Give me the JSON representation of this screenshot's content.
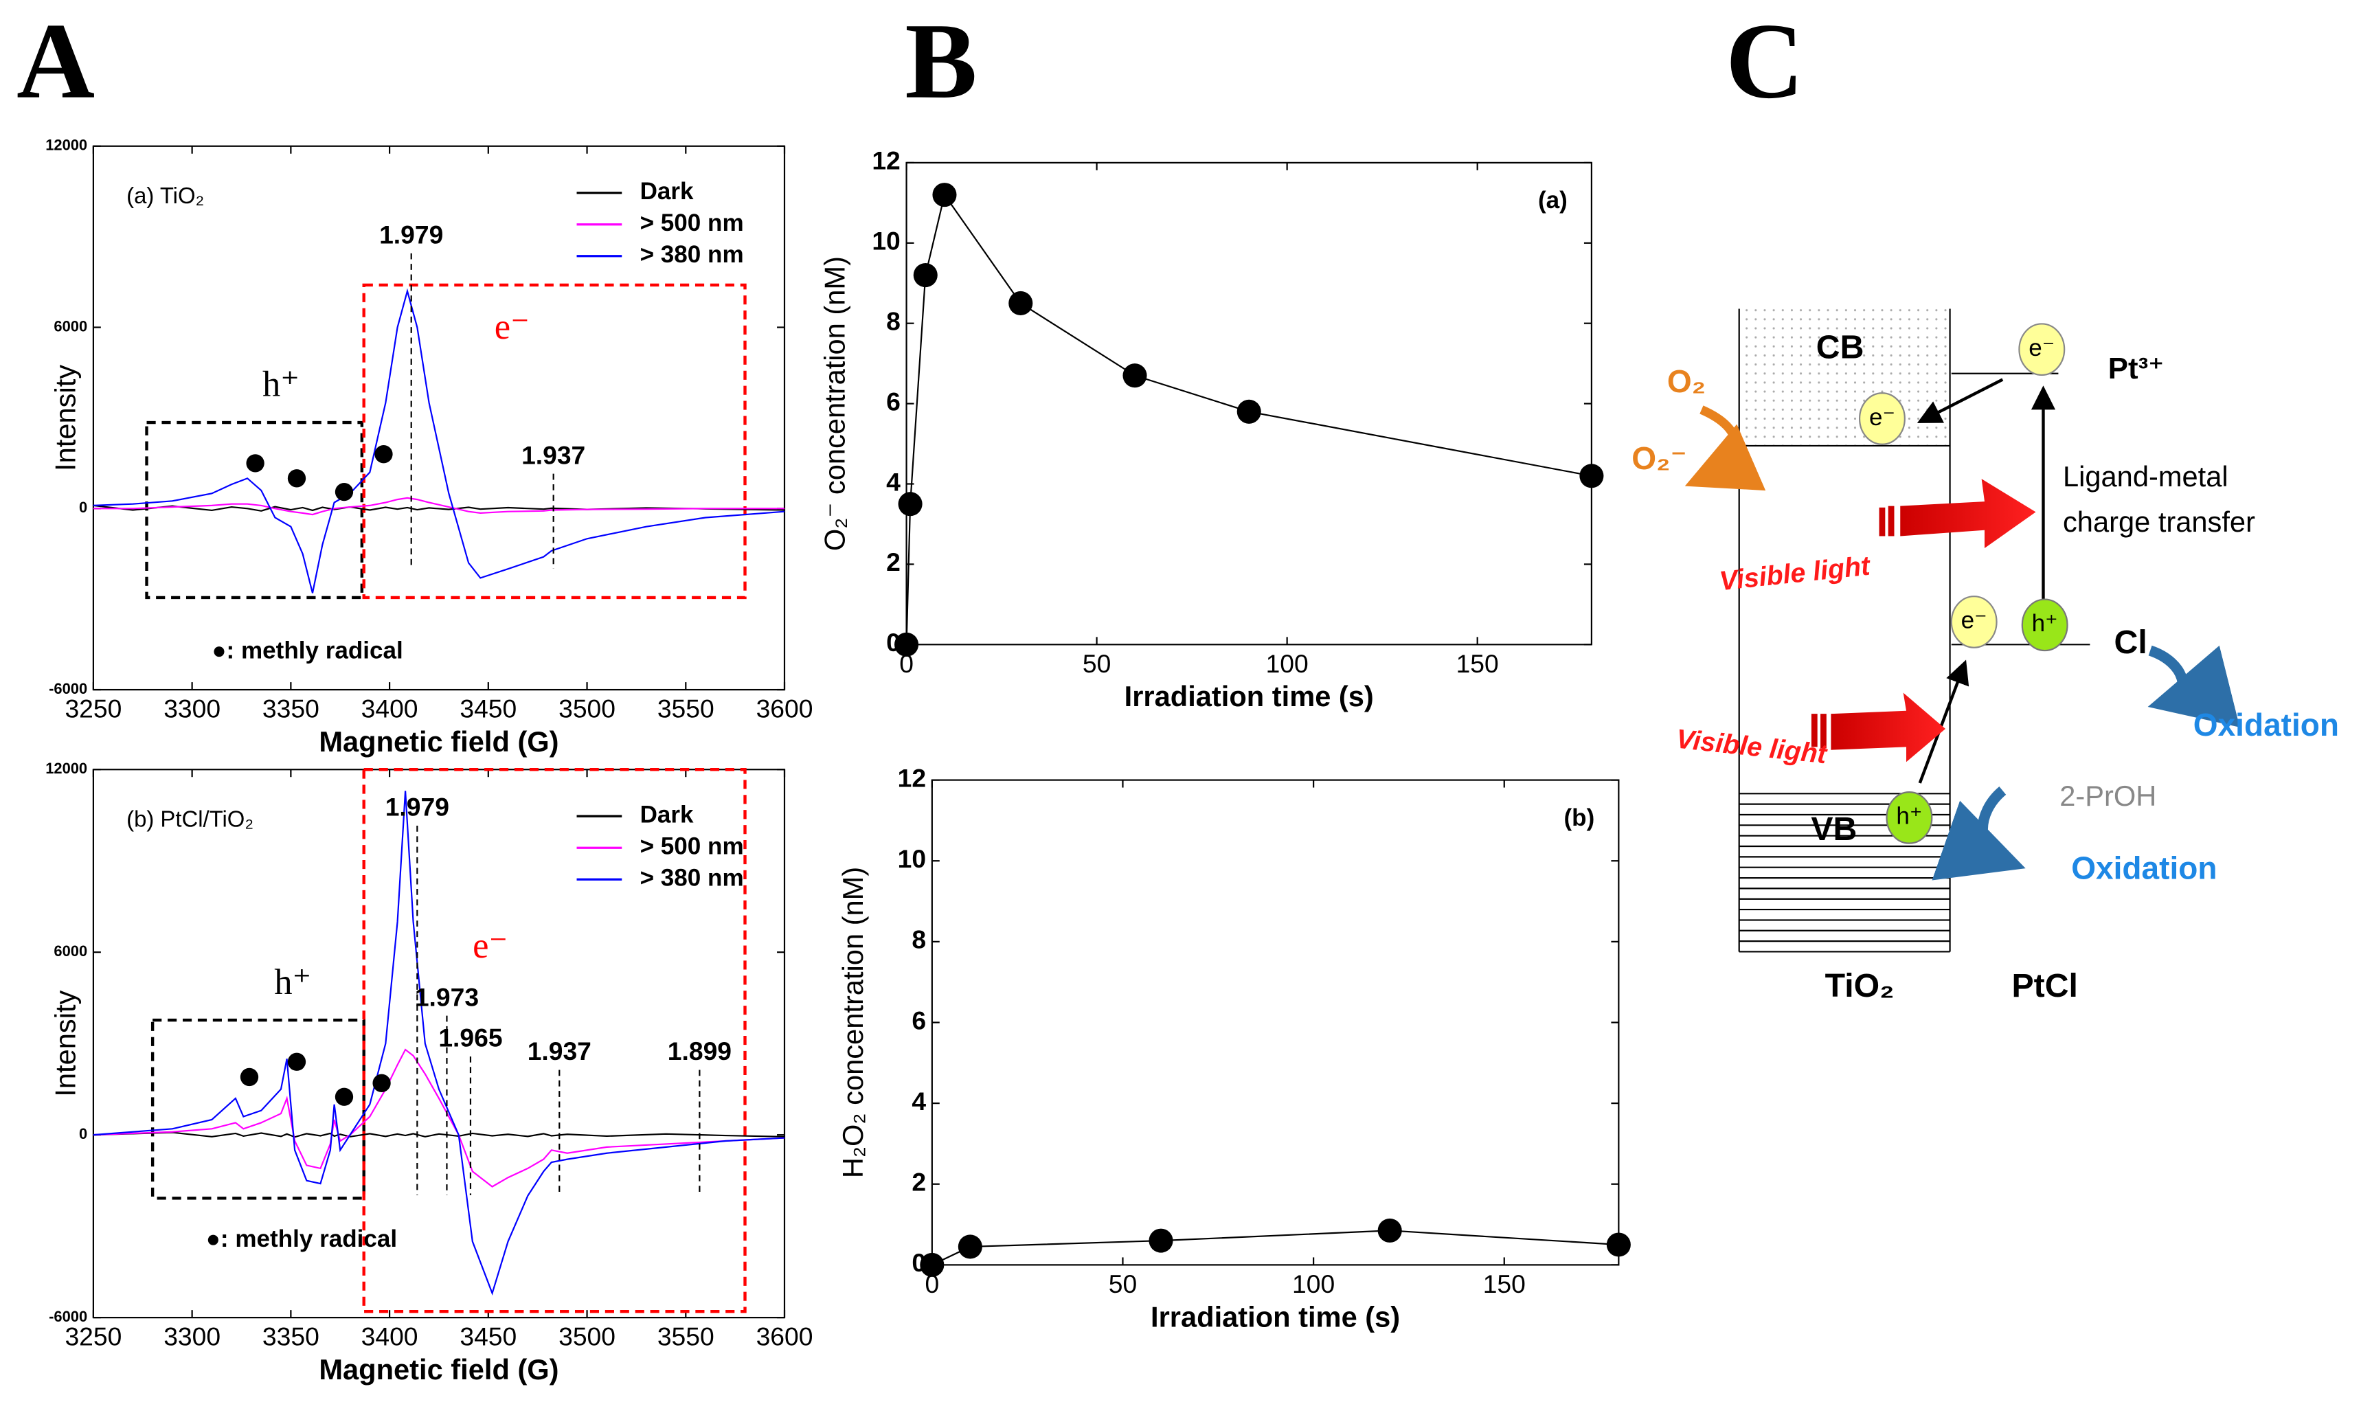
{
  "panels": [
    "A",
    "B",
    "C"
  ],
  "chart_data": [
    {
      "type": "line",
      "title": "(a) TiO₂",
      "xlabel": "Magnetic field (G)",
      "ylabel": "Intensity",
      "xlim": [
        3250,
        3600
      ],
      "xticks": [
        3250,
        3300,
        3350,
        3400,
        3450,
        3500,
        3550,
        3600
      ],
      "ylim": [
        -6000,
        12000
      ],
      "yticks": [
        -6000,
        0,
        6000,
        12000
      ],
      "legend": "upper right",
      "x": [
        3250,
        3270,
        3290,
        3310,
        3320,
        3328,
        3335,
        3342,
        3350,
        3356,
        3361,
        3366,
        3372,
        3380,
        3390,
        3398,
        3404,
        3409,
        3414,
        3420,
        3430,
        3440,
        3446,
        3460,
        3478,
        3482,
        3500,
        3530,
        3560,
        3600
      ],
      "series": [
        {
          "name": "Dark",
          "color": "#000000",
          "values": [
            100,
            -50,
            80,
            -60,
            50,
            0,
            -80,
            60,
            -40,
            30,
            -60,
            40,
            -30,
            50,
            -50,
            40,
            -20,
            30,
            -40,
            20,
            -30,
            40,
            -20,
            30,
            -20,
            10,
            -30,
            20,
            -10,
            -50
          ]
        },
        {
          "name": "> 500 nm",
          "color": "#ff00ff",
          "values": [
            0,
            0,
            50,
            100,
            150,
            150,
            100,
            0,
            -100,
            -150,
            -200,
            -100,
            0,
            50,
            100,
            200,
            300,
            350,
            300,
            200,
            50,
            -100,
            -150,
            -100,
            -80,
            -50,
            -30,
            -20,
            0,
            0
          ]
        },
        {
          "name": "> 380 nm",
          "color": "#0000ff",
          "values": [
            100,
            150,
            250,
            500,
            800,
            1000,
            600,
            -300,
            -600,
            -1500,
            -2800,
            -1200,
            200,
            500,
            1200,
            3500,
            6000,
            7200,
            6000,
            3500,
            500,
            -1800,
            -2300,
            -2000,
            -1600,
            -1400,
            -1000,
            -600,
            -300,
            -100
          ]
        }
      ],
      "regions": [
        {
          "label": "h⁺",
          "color": "#000000",
          "x": [
            3277,
            3386
          ],
          "y": [
            -2950,
            2850
          ],
          "label_at": [
            3345,
            4000
          ]
        },
        {
          "label": "e⁻",
          "color": "#ff0000",
          "x": [
            3387,
            3580
          ],
          "y": [
            -2950,
            7400
          ],
          "label_at": [
            3462,
            5900
          ]
        }
      ],
      "g_markers": [
        {
          "label": "1.979",
          "x": 3411,
          "y": 9000
        },
        {
          "label": "1.937",
          "x": 3483,
          "y": 1700
        }
      ],
      "radicals": {
        "x": [
          3332,
          3353,
          3377,
          3397
        ],
        "y": [
          1500,
          1000,
          550,
          1800
        ]
      },
      "note": {
        "text": "●: methly radical",
        "x": 3310,
        "y": -4750
      }
    },
    {
      "type": "line",
      "title": "(b) PtCl/TiO₂",
      "xlabel": "Magnetic field (G)",
      "ylabel": "Intensity",
      "xlim": [
        3250,
        3600
      ],
      "xticks": [
        3250,
        3300,
        3350,
        3400,
        3450,
        3500,
        3550,
        3600
      ],
      "ylim": [
        -6000,
        12000
      ],
      "yticks": [
        -6000,
        0,
        6000,
        12000
      ],
      "legend": "upper right",
      "x": [
        3250,
        3290,
        3310,
        3322,
        3326,
        3335,
        3345,
        3348,
        3352,
        3358,
        3365,
        3370,
        3372,
        3375,
        3380,
        3390,
        3398,
        3404,
        3408,
        3412,
        3418,
        3425,
        3435,
        3442,
        3452,
        3460,
        3470,
        3478,
        3482,
        3490,
        3510,
        3540,
        3570,
        3600
      ],
      "series": [
        {
          "name": "Dark",
          "color": "#000000",
          "values": [
            0,
            80,
            -60,
            50,
            -40,
            60,
            -50,
            30,
            -70,
            40,
            -30,
            50,
            -40,
            20,
            -60,
            40,
            -50,
            30,
            -20,
            40,
            -60,
            30,
            -40,
            50,
            -30,
            20,
            -50,
            40,
            -30,
            20,
            -40,
            30,
            -20,
            -60
          ]
        },
        {
          "name": "> 500 nm",
          "color": "#ff00ff",
          "values": [
            0,
            100,
            200,
            400,
            200,
            400,
            700,
            1200,
            -200,
            -1000,
            -1100,
            -300,
            500,
            -200,
            0,
            600,
            1500,
            2300,
            2800,
            2600,
            2000,
            1200,
            0,
            -1200,
            -1700,
            -1400,
            -1100,
            -800,
            -500,
            -600,
            -400,
            -300,
            -200,
            -100
          ]
        },
        {
          "name": "> 380 nm",
          "color": "#0000ff",
          "values": [
            0,
            200,
            500,
            1200,
            600,
            800,
            1500,
            2500,
            -500,
            -1500,
            -1600,
            -500,
            1000,
            -500,
            0,
            1000,
            3000,
            7000,
            11300,
            7000,
            3000,
            1500,
            0,
            -3500,
            -5200,
            -3500,
            -2000,
            -1200,
            -900,
            -800,
            -600,
            -400,
            -200,
            -100
          ]
        }
      ],
      "regions": [
        {
          "label": "h⁺",
          "color": "#000000",
          "x": [
            3280,
            3387
          ],
          "y": [
            -2080,
            3770
          ],
          "label_at": [
            3351,
            4900
          ]
        },
        {
          "label": "e⁻",
          "color": "#ff0000",
          "x": [
            3387,
            3580
          ],
          "y": [
            -5800,
            12000
          ],
          "label_at": [
            3451,
            6100
          ]
        }
      ],
      "g_markers": [
        {
          "label": "1.979",
          "x": 3414,
          "y": 10700
        },
        {
          "label": "1.973",
          "x": 3429,
          "y": 4460
        },
        {
          "label": "1.965",
          "x": 3441,
          "y": 3120
        },
        {
          "label": "1.937",
          "x": 3486,
          "y": 2680
        },
        {
          "label": "1.899",
          "x": 3557,
          "y": 2680
        }
      ],
      "radicals": {
        "x": [
          3329,
          3353,
          3377,
          3396
        ],
        "y": [
          1900,
          2400,
          1250,
          1700
        ]
      },
      "note": {
        "text": "●: methly radical",
        "x": 3307,
        "y": -3470
      }
    },
    {
      "type": "line",
      "title": "(a)",
      "xlabel": "Irradiation time (s)",
      "ylabel": "O₂⁻ concentration (nM)",
      "xlim": [
        0,
        180
      ],
      "xticks": [
        0,
        50,
        100,
        150
      ],
      "ylim": [
        0,
        12
      ],
      "yticks": [
        0,
        2,
        4,
        6,
        8,
        10,
        12
      ],
      "x": [
        0,
        1,
        5,
        10,
        30,
        60,
        90,
        180
      ],
      "values": [
        0,
        3.5,
        9.2,
        11.2,
        8.5,
        6.7,
        5.8,
        4.2
      ],
      "color": "#000000",
      "marker": "circle"
    },
    {
      "type": "line",
      "title": "(b)",
      "xlabel": "Irradiation time (s)",
      "ylabel": "H₂O₂ concentration (nM)",
      "xlim": [
        0,
        180
      ],
      "xticks": [
        0,
        50,
        100,
        150
      ],
      "ylim": [
        0,
        12
      ],
      "yticks": [
        0,
        2,
        4,
        6,
        8,
        10,
        12
      ],
      "x": [
        0,
        10,
        60,
        120,
        180
      ],
      "values": [
        0,
        0.45,
        0.6,
        0.85,
        0.5
      ],
      "color": "#000000",
      "marker": "circle"
    }
  ],
  "diagram": {
    "cb": "CB",
    "vb": "VB",
    "tio2": "TiO₂",
    "ptcl": "PtCl",
    "o2": "O₂",
    "o2_minus": "O₂⁻",
    "electron": "e⁻",
    "hole": "h⁺",
    "pt3": "Pt³⁺",
    "lmct": [
      "Ligand-metal",
      "charge transfer"
    ],
    "visible_light": "Visible light",
    "cl": "Cl",
    "oxidation": "Oxidation",
    "proh": "2-PrOH"
  }
}
